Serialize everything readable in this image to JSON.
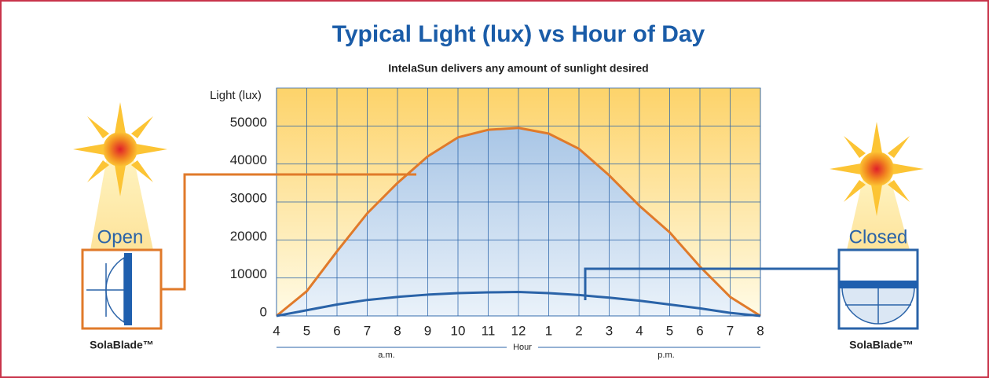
{
  "chart_data": {
    "type": "line",
    "title": "Typical Light (lux) vs Hour of Day",
    "subtitle": "IntelaSun delivers any amount of sunlight desired",
    "y_label": "Light (lux)",
    "x_label": "Hour",
    "period_labels": [
      "a.m.",
      "p.m."
    ],
    "product_labels": [
      "SolaBlade™",
      "SolaBlade™"
    ],
    "categories": [
      "4",
      "5",
      "6",
      "7",
      "8",
      "9",
      "10",
      "11",
      "12",
      "1",
      "2",
      "3",
      "4",
      "5",
      "6",
      "7",
      "8"
    ],
    "series": [
      {
        "name": "Open",
        "color": "#e07a2a",
        "values": [
          0,
          6500,
          17000,
          27000,
          35000,
          42000,
          47000,
          49000,
          49500,
          48000,
          44000,
          37000,
          29000,
          22000,
          13000,
          5000,
          0
        ]
      },
      {
        "name": "Closed",
        "color": "#2a63a8",
        "values": [
          0,
          1500,
          3000,
          4200,
          5000,
          5600,
          6000,
          6200,
          6300,
          6000,
          5500,
          4800,
          4000,
          3000,
          2000,
          800,
          0
        ]
      }
    ],
    "ylim": [
      0,
      60000
    ],
    "yticks": [
      0,
      10000,
      20000,
      30000,
      40000,
      50000
    ],
    "grid": true
  }
}
